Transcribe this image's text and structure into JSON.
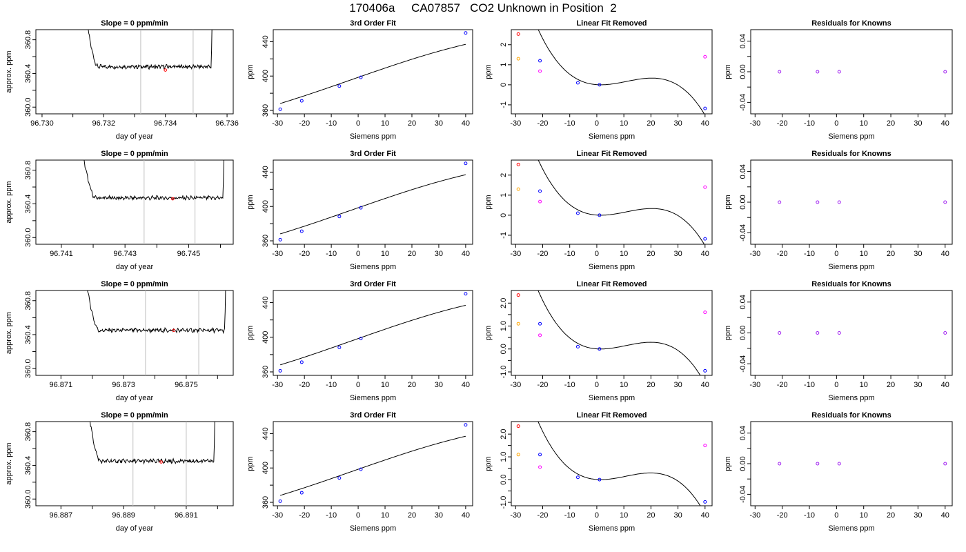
{
  "main_title": "170406a     CA07857   CO2 Unknown in Position  2",
  "colors": {
    "axis": "#000000",
    "trace": "#000000",
    "vline": "#bebebe",
    "marker_red": "#ff0000",
    "marker_orange": "#ffa500",
    "marker_magenta": "#ff00ff",
    "marker_blue": "#0000ff",
    "marker_purple": "#a020f0"
  },
  "chart_data": [
    {
      "type": "line",
      "title": "Slope =  0  ppm/min",
      "xlabel": "day of year",
      "ylabel": "approx. ppm",
      "xlim": [
        96.7298,
        96.7362
      ],
      "ylim": [
        359.92,
        360.92
      ],
      "xticks": [
        96.73,
        96.731,
        96.732,
        96.733,
        96.734,
        96.735,
        96.736
      ],
      "xtick_labels": [
        "96.730",
        "",
        "96.732",
        "",
        "96.734",
        "",
        "96.736"
      ],
      "yticks": [
        360.0,
        360.2,
        360.4,
        360.6,
        360.8
      ],
      "ytick_labels": [
        "360.0",
        "",
        "360.4",
        "",
        "360.8"
      ],
      "vlines": [
        96.7332,
        96.7349
      ],
      "marker": {
        "x": 96.734,
        "y": 360.44
      },
      "window": [
        96.73125,
        96.73555
      ],
      "plateau": 360.48
    },
    {
      "type": "scatter",
      "title": "3rd Order Fit",
      "xlabel": "Siemens ppm",
      "ylabel": "ppm",
      "xlim": [
        -31.6,
        42.6
      ],
      "ylim": [
        356,
        454
      ],
      "xticks": [
        -30,
        -20,
        -10,
        0,
        10,
        20,
        30,
        40
      ],
      "yticks": [
        360,
        380,
        400,
        420,
        440
      ],
      "ytick_labels": [
        "360",
        "",
        "400",
        "",
        "440"
      ],
      "points": [
        {
          "x": -29,
          "y": 361.3
        },
        {
          "x": -21,
          "y": 371.2
        },
        {
          "x": -7,
          "y": 388.3
        },
        {
          "x": 1,
          "y": 398.5
        },
        {
          "x": 40,
          "y": 450.2
        }
      ],
      "curve": {
        "type": "poly",
        "coef": [
          398.5,
          1.0906,
          -0.000525,
          -6.826e-05
        ]
      }
    },
    {
      "type": "scatter",
      "title": "Linear Fit Removed",
      "xlabel": "Siemens ppm",
      "ylabel": "ppm",
      "xlim": [
        -31.6,
        42.6
      ],
      "ylim": [
        -1.45,
        2.75
      ],
      "xticks": [
        -30,
        -20,
        -10,
        0,
        10,
        20,
        30,
        40
      ],
      "yticks": [
        -1,
        0,
        1,
        2
      ],
      "ytick_labels": [
        "-1",
        "0",
        "1",
        "2"
      ],
      "points": [
        {
          "x": -29,
          "y": 2.53,
          "c": "marker_red"
        },
        {
          "x": -29,
          "y": 1.3,
          "c": "marker_orange"
        },
        {
          "x": -21,
          "y": 1.2,
          "c": "marker_blue"
        },
        {
          "x": -21,
          "y": 0.68,
          "c": "marker_magenta"
        },
        {
          "x": -7,
          "y": 0.1,
          "c": "marker_blue"
        },
        {
          "x": 1,
          "y": 0.0,
          "c": "marker_blue"
        },
        {
          "x": 40,
          "y": 1.4,
          "c": "marker_magenta"
        },
        {
          "x": 40,
          "y": -1.18,
          "c": "marker_blue"
        }
      ],
      "curve": {
        "type": "poly",
        "coef": [
          0,
          -0.003,
          0.00298,
          -0.0001
        ],
        "shift": 1
      }
    },
    {
      "type": "scatter",
      "title": "Residuals for Knowns",
      "xlabel": "Siemens ppm",
      "ylabel": "ppm",
      "xlim": [
        -31.6,
        42.6
      ],
      "ylim": [
        -0.055,
        0.055
      ],
      "xticks": [
        -30,
        -20,
        -10,
        0,
        10,
        20,
        30,
        40
      ],
      "yticks": [
        -0.04,
        -0.02,
        0,
        0.02,
        0.04
      ],
      "ytick_labels": [
        "-0.04",
        "",
        "0.00",
        "",
        "0.04"
      ],
      "points": [
        {
          "x": -21,
          "y": 0
        },
        {
          "x": -7,
          "y": 0
        },
        {
          "x": 1,
          "y": 0
        },
        {
          "x": 40,
          "y": 0
        }
      ]
    },
    {
      "type": "line",
      "title": "Slope =  0  ppm/min",
      "xlabel": "day of year",
      "ylabel": "approx. ppm",
      "xlim": [
        96.7402,
        96.7464
      ],
      "ylim": [
        359.92,
        360.92
      ],
      "xticks": [
        96.741,
        96.742,
        96.743,
        96.744,
        96.745,
        96.746
      ],
      "xtick_labels": [
        "96.741",
        "",
        "96.743",
        "",
        "96.745",
        ""
      ],
      "yticks": [
        360.0,
        360.2,
        360.4,
        360.6,
        360.8
      ],
      "ytick_labels": [
        "360.0",
        "",
        "360.4",
        "",
        "360.8"
      ],
      "vlines": [
        96.7436,
        96.7452
      ],
      "marker": {
        "x": 96.7445,
        "y": 360.46
      },
      "window": [
        96.74145,
        96.74615
      ],
      "plateau": 360.47
    },
    {
      "type": "scatter",
      "title": "3rd Order Fit",
      "xlabel": "Siemens ppm",
      "ylabel": "ppm",
      "xlim": [
        -31.6,
        42.6
      ],
      "ylim": [
        356,
        454
      ],
      "xticks": [
        -30,
        -20,
        -10,
        0,
        10,
        20,
        30,
        40
      ],
      "yticks": [
        360,
        380,
        400,
        420,
        440
      ],
      "ytick_labels": [
        "360",
        "",
        "400",
        "",
        "440"
      ],
      "points": [
        {
          "x": -29,
          "y": 361.3
        },
        {
          "x": -21,
          "y": 371.2
        },
        {
          "x": -7,
          "y": 388.3
        },
        {
          "x": 1,
          "y": 398.5
        },
        {
          "x": 40,
          "y": 450.2
        }
      ],
      "curve": {
        "type": "poly",
        "coef": [
          398.5,
          1.0906,
          -0.000525,
          -6.826e-05
        ]
      }
    },
    {
      "type": "scatter",
      "title": "Linear Fit Removed",
      "xlabel": "Siemens ppm",
      "ylabel": "ppm",
      "xlim": [
        -31.6,
        42.6
      ],
      "ylim": [
        -1.45,
        2.75
      ],
      "xticks": [
        -30,
        -20,
        -10,
        0,
        10,
        20,
        30,
        40
      ],
      "yticks": [
        -1,
        0,
        1,
        2
      ],
      "ytick_labels": [
        "-1",
        "0",
        "1",
        "2"
      ],
      "points": [
        {
          "x": -29,
          "y": 2.53,
          "c": "marker_red"
        },
        {
          "x": -29,
          "y": 1.3,
          "c": "marker_orange"
        },
        {
          "x": -21,
          "y": 1.2,
          "c": "marker_blue"
        },
        {
          "x": -21,
          "y": 0.68,
          "c": "marker_magenta"
        },
        {
          "x": -7,
          "y": 0.1,
          "c": "marker_blue"
        },
        {
          "x": 1,
          "y": 0.0,
          "c": "marker_blue"
        },
        {
          "x": 40,
          "y": 1.4,
          "c": "marker_magenta"
        },
        {
          "x": 40,
          "y": -1.18,
          "c": "marker_blue"
        }
      ],
      "curve": {
        "type": "poly",
        "coef": [
          0,
          -0.003,
          0.00298,
          -0.0001
        ],
        "shift": 1
      }
    },
    {
      "type": "scatter",
      "title": "Residuals for Knowns",
      "xlabel": "Siemens ppm",
      "ylabel": "ppm",
      "xlim": [
        -31.6,
        42.6
      ],
      "ylim": [
        -0.055,
        0.055
      ],
      "xticks": [
        -30,
        -20,
        -10,
        0,
        10,
        20,
        30,
        40
      ],
      "yticks": [
        -0.04,
        -0.02,
        0,
        0.02,
        0.04
      ],
      "ytick_labels": [
        "-0.04",
        "",
        "0.00",
        "",
        "0.04"
      ],
      "points": [
        {
          "x": -21,
          "y": 0
        },
        {
          "x": -7,
          "y": 0
        },
        {
          "x": 1,
          "y": 0
        },
        {
          "x": 40,
          "y": 0
        }
      ]
    },
    {
      "type": "line",
      "title": "Slope =  0  ppm/min",
      "xlabel": "day of year",
      "ylabel": "approx. ppm",
      "xlim": [
        96.8702,
        96.8765
      ],
      "ylim": [
        359.92,
        360.92
      ],
      "xticks": [
        96.871,
        96.872,
        96.873,
        96.874,
        96.875,
        96.876
      ],
      "xtick_labels": [
        "96.871",
        "",
        "96.873",
        "",
        "96.875",
        ""
      ],
      "yticks": [
        360.0,
        360.2,
        360.4,
        360.6,
        360.8
      ],
      "ytick_labels": [
        "360.0",
        "",
        "360.4",
        "",
        "360.8"
      ],
      "vlines": [
        96.8737,
        96.8754
      ],
      "marker": {
        "x": 96.8746,
        "y": 360.45
      },
      "window": [
        96.8716,
        96.8763
      ],
      "plateau": 360.45
    },
    {
      "type": "scatter",
      "title": "3rd Order Fit",
      "xlabel": "Siemens ppm",
      "ylabel": "ppm",
      "xlim": [
        -31.6,
        42.6
      ],
      "ylim": [
        356,
        454
      ],
      "xticks": [
        -30,
        -20,
        -10,
        0,
        10,
        20,
        30,
        40
      ],
      "yticks": [
        360,
        380,
        400,
        420,
        440
      ],
      "ytick_labels": [
        "360",
        "",
        "400",
        "",
        "440"
      ],
      "points": [
        {
          "x": -29,
          "y": 361.3
        },
        {
          "x": -21,
          "y": 371.2
        },
        {
          "x": -7,
          "y": 388.3
        },
        {
          "x": 1,
          "y": 398.5
        },
        {
          "x": 40,
          "y": 450.2
        }
      ],
      "curve": {
        "type": "poly",
        "coef": [
          398.5,
          1.0906,
          -0.000525,
          -6.826e-05
        ]
      }
    },
    {
      "type": "scatter",
      "title": "Linear Fit Removed",
      "xlabel": "Siemens ppm",
      "ylabel": "ppm",
      "xlim": [
        -31.6,
        42.6
      ],
      "ylim": [
        -1.15,
        2.55
      ],
      "xticks": [
        -30,
        -20,
        -10,
        0,
        10,
        20,
        30,
        40
      ],
      "yticks": [
        -1.0,
        -0.5,
        0.0,
        0.5,
        1.0,
        1.5,
        2.0
      ],
      "ytick_labels": [
        "-1.0",
        "",
        "0.0",
        "",
        "1.0",
        "",
        "2.0"
      ],
      "points": [
        {
          "x": -29,
          "y": 2.35,
          "c": "marker_red"
        },
        {
          "x": -29,
          "y": 1.1,
          "c": "marker_orange"
        },
        {
          "x": -21,
          "y": 1.1,
          "c": "marker_blue"
        },
        {
          "x": -21,
          "y": 0.6,
          "c": "marker_magenta"
        },
        {
          "x": -7,
          "y": 0.1,
          "c": "marker_blue"
        },
        {
          "x": 1,
          "y": 0.0,
          "c": "marker_blue"
        },
        {
          "x": 40,
          "y": 1.6,
          "c": "marker_magenta"
        },
        {
          "x": 40,
          "y": -0.95,
          "c": "marker_blue"
        }
      ],
      "curve": {
        "type": "poly",
        "coef": [
          0,
          -0.0025,
          0.00272,
          -9.35e-05
        ],
        "shift": 1
      }
    },
    {
      "type": "scatter",
      "title": "Residuals for Knowns",
      "xlabel": "Siemens ppm",
      "ylabel": "ppm",
      "xlim": [
        -31.6,
        42.6
      ],
      "ylim": [
        -0.055,
        0.055
      ],
      "xticks": [
        -30,
        -20,
        -10,
        0,
        10,
        20,
        30,
        40
      ],
      "yticks": [
        -0.04,
        -0.02,
        0,
        0.02,
        0.04
      ],
      "ytick_labels": [
        "-0.04",
        "",
        "0.00",
        "",
        "0.04"
      ],
      "points": [
        {
          "x": -21,
          "y": 0
        },
        {
          "x": -7,
          "y": 0
        },
        {
          "x": 1,
          "y": 0
        },
        {
          "x": 40,
          "y": 0
        }
      ]
    },
    {
      "type": "line",
      "title": "Slope =  0  ppm/min",
      "xlabel": "day of year",
      "ylabel": "approx. ppm",
      "xlim": [
        96.8862,
        96.8925
      ],
      "ylim": [
        359.92,
        360.92
      ],
      "xticks": [
        96.887,
        96.888,
        96.889,
        96.89,
        96.891,
        96.892
      ],
      "xtick_labels": [
        "96.887",
        "",
        "96.889",
        "",
        "96.891",
        ""
      ],
      "yticks": [
        360.0,
        360.2,
        360.4,
        360.6,
        360.8
      ],
      "ytick_labels": [
        "360.0",
        "",
        "360.4",
        "",
        "360.8"
      ],
      "vlines": [
        96.8893,
        96.891
      ],
      "marker": {
        "x": 96.8902,
        "y": 360.44
      },
      "window": [
        96.8877,
        96.89195
      ],
      "plateau": 360.45
    },
    {
      "type": "scatter",
      "title": "3rd Order Fit",
      "xlabel": "Siemens ppm",
      "ylabel": "ppm",
      "xlim": [
        -31.6,
        42.6
      ],
      "ylim": [
        356,
        454
      ],
      "xticks": [
        -30,
        -20,
        -10,
        0,
        10,
        20,
        30,
        40
      ],
      "yticks": [
        360,
        380,
        400,
        420,
        440
      ],
      "ytick_labels": [
        "360",
        "",
        "400",
        "",
        "440"
      ],
      "points": [
        {
          "x": -29,
          "y": 361.3
        },
        {
          "x": -21,
          "y": 371.2
        },
        {
          "x": -7,
          "y": 388.3
        },
        {
          "x": 1,
          "y": 398.5
        },
        {
          "x": 40,
          "y": 450.2
        }
      ],
      "curve": {
        "type": "poly",
        "coef": [
          398.5,
          1.0906,
          -0.000525,
          -6.826e-05
        ]
      }
    },
    {
      "type": "scatter",
      "title": "Linear Fit Removed",
      "xlabel": "Siemens ppm",
      "ylabel": "ppm",
      "xlim": [
        -31.6,
        42.6
      ],
      "ylim": [
        -1.15,
        2.55
      ],
      "xticks": [
        -30,
        -20,
        -10,
        0,
        10,
        20,
        30,
        40
      ],
      "yticks": [
        -1.0,
        -0.5,
        0.0,
        0.5,
        1.0,
        1.5,
        2.0
      ],
      "ytick_labels": [
        "-1.0",
        "",
        "0.0",
        "",
        "1.0",
        "",
        "2.0"
      ],
      "points": [
        {
          "x": -29,
          "y": 2.35,
          "c": "marker_red"
        },
        {
          "x": -29,
          "y": 1.1,
          "c": "marker_orange"
        },
        {
          "x": -21,
          "y": 1.1,
          "c": "marker_blue"
        },
        {
          "x": -21,
          "y": 0.55,
          "c": "marker_magenta"
        },
        {
          "x": -7,
          "y": 0.1,
          "c": "marker_blue"
        },
        {
          "x": 1,
          "y": 0.0,
          "c": "marker_blue"
        },
        {
          "x": 40,
          "y": 1.5,
          "c": "marker_magenta"
        },
        {
          "x": 40,
          "y": -0.98,
          "c": "marker_blue"
        }
      ],
      "curve": {
        "type": "poly",
        "coef": [
          0,
          -0.0025,
          0.00272,
          -9.35e-05
        ],
        "shift": 1
      }
    },
    {
      "type": "scatter",
      "title": "Residuals for Knowns",
      "xlabel": "Siemens ppm",
      "ylabel": "ppm",
      "xlim": [
        -31.6,
        42.6
      ],
      "ylim": [
        -0.055,
        0.055
      ],
      "xticks": [
        -30,
        -20,
        -10,
        0,
        10,
        20,
        30,
        40
      ],
      "yticks": [
        -0.04,
        -0.02,
        0,
        0.02,
        0.04
      ],
      "ytick_labels": [
        "-0.04",
        "",
        "0.00",
        "",
        "0.04"
      ],
      "points": [
        {
          "x": -21,
          "y": 0
        },
        {
          "x": -7,
          "y": 0
        },
        {
          "x": 1,
          "y": 0
        },
        {
          "x": 40,
          "y": 0
        }
      ]
    }
  ]
}
